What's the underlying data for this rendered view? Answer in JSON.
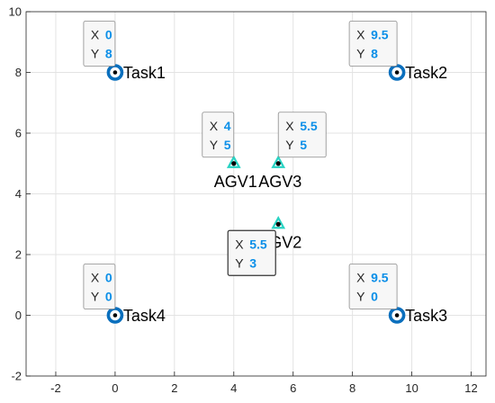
{
  "chart_data": {
    "type": "scatter",
    "xlim": [
      -3,
      12.5
    ],
    "ylim": [
      -2,
      10
    ],
    "xticks": [
      -2,
      0,
      2,
      4,
      6,
      8,
      10,
      12
    ],
    "yticks": [
      -2,
      0,
      2,
      4,
      6,
      8,
      10
    ],
    "grid": true,
    "points": [
      {
        "label": "Task1",
        "x": 0,
        "y": 8,
        "x_text": "0",
        "y_text": "8",
        "kind": "task",
        "tip": true
      },
      {
        "label": "Task2",
        "x": 9.5,
        "y": 8,
        "x_text": "9.5",
        "y_text": "8",
        "kind": "task",
        "tip": true
      },
      {
        "label": "Task3",
        "x": 9.5,
        "y": 0,
        "x_text": "9.5",
        "y_text": "0",
        "kind": "task",
        "tip": true
      },
      {
        "label": "Task4",
        "x": 0,
        "y": 0,
        "x_text": "0",
        "y_text": "0",
        "kind": "task",
        "tip": true
      },
      {
        "label": "AGV1",
        "x": 4,
        "y": 5,
        "x_text": "4",
        "y_text": "5",
        "kind": "agv",
        "tip": true
      },
      {
        "label": "AGV2",
        "x": 5.5,
        "y": 3,
        "x_text": "5.5",
        "y_text": "3",
        "kind": "agv",
        "tip": true
      },
      {
        "label": "AGV3",
        "x": 5.5,
        "y": 5,
        "x_text": "5.5",
        "y_text": "5",
        "kind": "agv",
        "tip": true
      }
    ],
    "tooltip_keys": {
      "x": "X",
      "y": "Y"
    },
    "colors": {
      "task_marker": "#0a6fbd",
      "agv_marker": "#28d3c3",
      "tooltip_value": "#0b8fe8",
      "grid": "#e3e3e3",
      "axis": "#262626"
    }
  }
}
